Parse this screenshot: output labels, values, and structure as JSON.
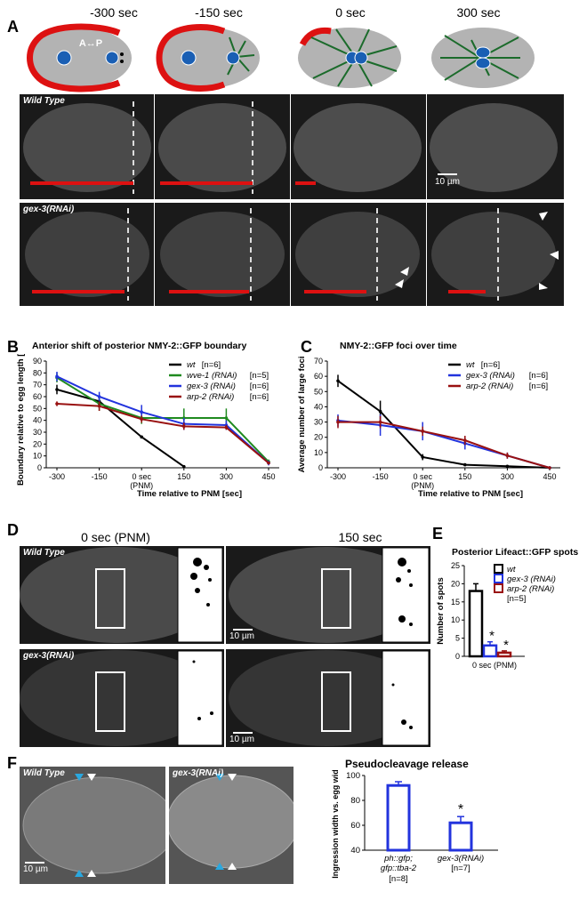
{
  "panel_labels": [
    "A",
    "B",
    "C",
    "D",
    "E",
    "F"
  ],
  "panelA": {
    "timepoints": [
      "-300 sec",
      "-150 sec",
      "0 sec",
      "300 sec"
    ],
    "axis_label": "A↔P",
    "row1_label": "Wild Type",
    "row2_label": "gex-3(RNAi)",
    "scale_bar": "10 µm"
  },
  "panelD": {
    "col1_title": "0 sec (PNM)",
    "col2_title": "150 sec",
    "row1_label": "Wild Type",
    "row2_label": "gex-3(RNAi)",
    "scale_bar": "10 µm"
  },
  "panelF": {
    "left_label": "Wild Type",
    "right_label": "gex-3(RNAi)",
    "scale_bar": "10 µm"
  },
  "colors": {
    "wt": "#000000",
    "wve1": "#1f8a1f",
    "gex3": "#2233dd",
    "arp2": "#991111",
    "cortex": "#dd1111",
    "spindle": "#1b6b2b",
    "nucleus": "#1a5fb4",
    "embryo": "#b3b3b3"
  },
  "chart_data": [
    {
      "id": "B",
      "type": "line",
      "title": "Anterior shift of posterior NMY-2::GFP boundary",
      "xlabel": "Time relative to PNM [sec]",
      "ylabel": "Boundary relative to egg length [%]",
      "categories": [
        "-300",
        "-150",
        "0 sec\n(PNM)",
        "150",
        "300",
        "450"
      ],
      "ylim": [
        0,
        90
      ],
      "yticks": [
        0,
        10,
        20,
        30,
        40,
        50,
        60,
        70,
        80,
        90
      ],
      "series": [
        {
          "name": "wt",
          "n": "[n=6]",
          "color": "#000000",
          "values": [
            66,
            56,
            26,
            1,
            null,
            null
          ],
          "errors": [
            4,
            3,
            1,
            0.5,
            0,
            0
          ]
        },
        {
          "name": "wve-1 (RNAi)",
          "n": "[n=5]",
          "color": "#1f8a1f",
          "values": [
            76,
            54,
            42,
            42,
            42,
            5
          ],
          "errors": [
            4,
            6,
            5,
            8,
            8,
            2
          ]
        },
        {
          "name": "gex-3 (RNAi)",
          "n": "[n=6]",
          "color": "#2233dd",
          "values": [
            77,
            60,
            47,
            37,
            36,
            4
          ],
          "errors": [
            4,
            4,
            6,
            5,
            4,
            2
          ]
        },
        {
          "name": "arp-2 (RNAi)",
          "n": "[n=6]",
          "color": "#991111",
          "values": [
            54,
            52,
            41,
            35,
            34,
            4
          ],
          "errors": [
            2,
            4,
            3,
            3,
            2,
            1
          ]
        }
      ]
    },
    {
      "id": "C",
      "type": "line",
      "title": "NMY-2::GFP foci over time",
      "xlabel": "Time relative to PNM [sec]",
      "ylabel": "Average number of large foci",
      "categories": [
        "-300",
        "-150",
        "0 sec\n(PNM)",
        "150",
        "300",
        "450"
      ],
      "ylim": [
        0,
        70
      ],
      "yticks": [
        0,
        10,
        20,
        30,
        40,
        50,
        60,
        70
      ],
      "series": [
        {
          "name": "wt",
          "n": "[n=6]",
          "color": "#000000",
          "values": [
            57,
            37,
            7,
            2,
            1,
            0
          ],
          "errors": [
            4,
            7,
            2,
            0.5,
            0.3,
            0
          ]
        },
        {
          "name": "gex-3 (RNAi)",
          "n": "[n=6]",
          "color": "#2233dd",
          "values": [
            31,
            28,
            24,
            16,
            8,
            0
          ],
          "errors": [
            4,
            7,
            6,
            4,
            2,
            0
          ]
        },
        {
          "name": "arp-2 (RNAi)",
          "n": "[n=6]",
          "color": "#991111",
          "values": [
            30,
            30,
            24,
            18,
            8,
            0
          ],
          "errors": [
            4,
            4,
            3,
            3,
            2,
            0
          ]
        }
      ]
    },
    {
      "id": "E",
      "type": "bar",
      "title": "Posterior Lifeact::GFP spots",
      "ylabel": "Number of spots",
      "categories": [
        "0 sec (PNM)"
      ],
      "ylim": [
        0,
        25
      ],
      "yticks": [
        0,
        5,
        10,
        15,
        20,
        25
      ],
      "n_label": "[n=5]",
      "series": [
        {
          "name": "wt",
          "color": "#000000",
          "value": 18,
          "error": 2,
          "star": false
        },
        {
          "name": "gex-3 (RNAi)",
          "color": "#2233dd",
          "value": 3,
          "error": 1,
          "star": true
        },
        {
          "name": "arp-2 (RNAi)",
          "color": "#991111",
          "value": 1,
          "error": 0.5,
          "star": true
        }
      ],
      "significance": "*"
    },
    {
      "id": "F",
      "type": "bar",
      "title": "Pseudocleavage release",
      "ylabel": "Ingression width vs. egg width [%]",
      "ylim": [
        40,
        100
      ],
      "yticks": [
        40,
        60,
        80,
        100
      ],
      "categories": [
        "ph::gfp; gfp::tba-2",
        "gex-3(RNAi)"
      ],
      "n_labels": [
        "[n=8]",
        "[n=7]"
      ],
      "values": [
        92,
        62
      ],
      "errors": [
        3,
        5
      ],
      "color": "#2233dd",
      "significance": "*"
    }
  ]
}
